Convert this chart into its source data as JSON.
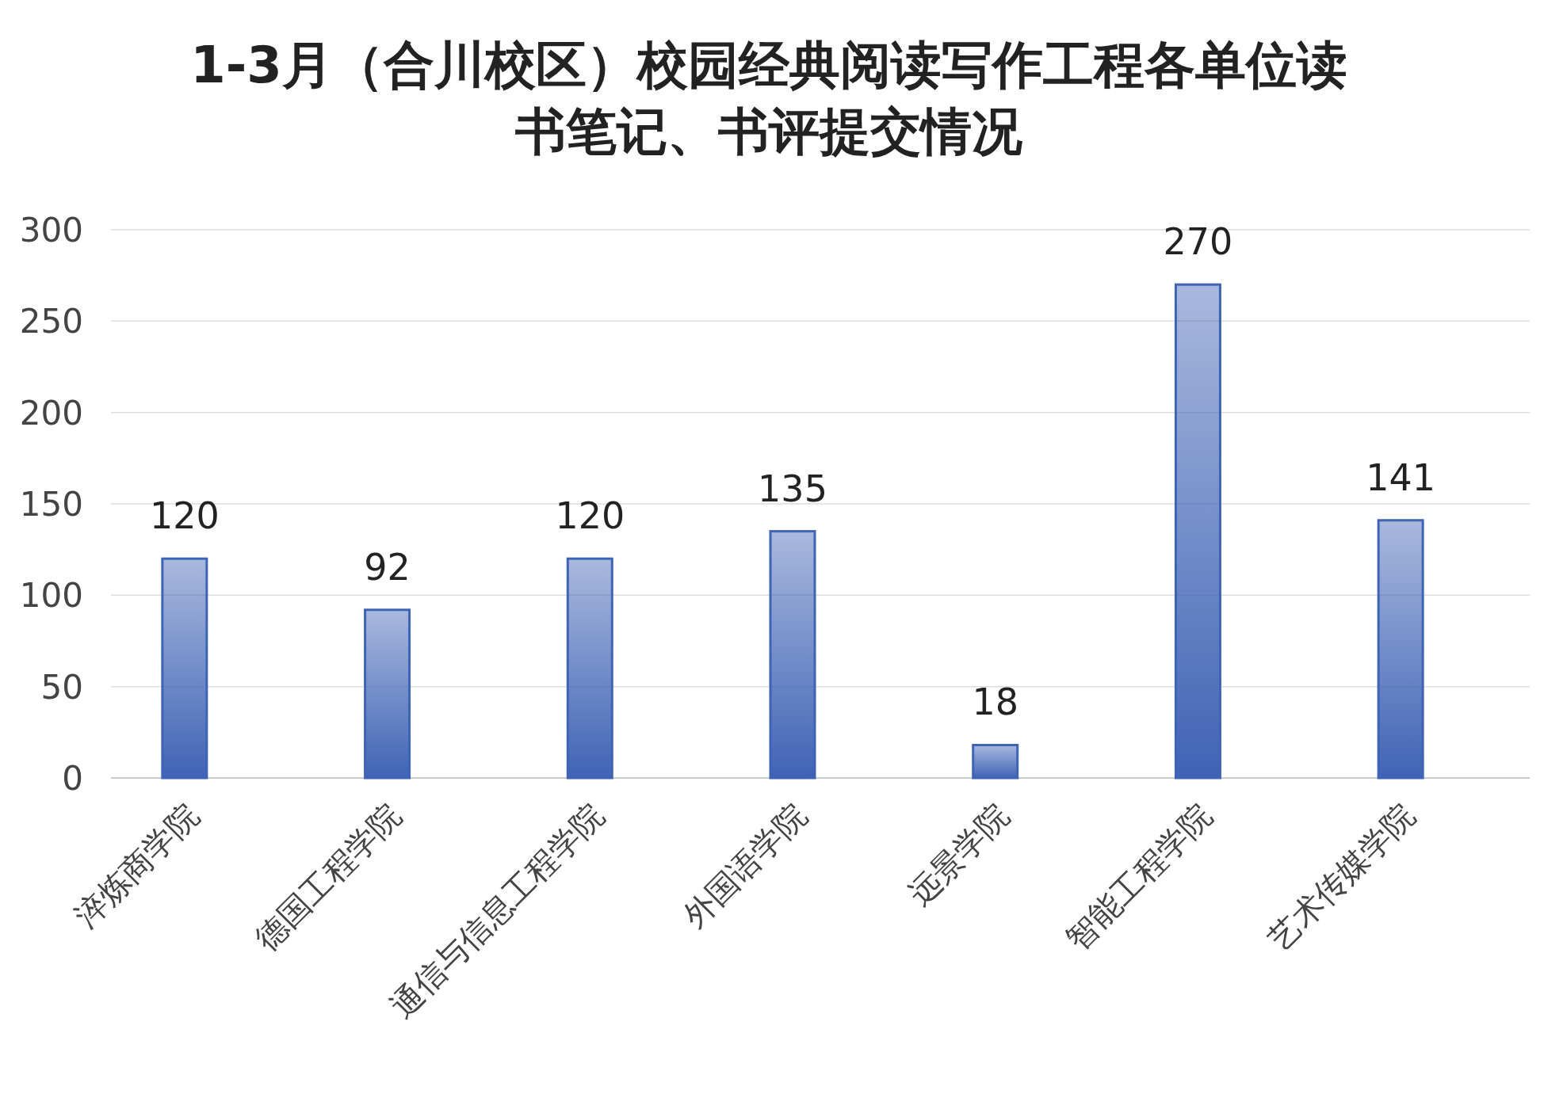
{
  "chart_data": {
    "type": "bar",
    "title": "1-3月（合川校区）校园经典阅读写作工程各单位读书笔记、书评提交情况",
    "categories": [
      "淬炼商学院",
      "德国工程学院",
      "通信与信息工程学院",
      "外国语学院",
      "远景学院",
      "智能工程学院",
      "艺术传媒学院"
    ],
    "values": [
      120,
      92,
      120,
      135,
      18,
      270,
      141
    ],
    "color": "#3f63b5",
    "ylim": [
      0,
      300
    ],
    "yticks": [
      0,
      50,
      100,
      150,
      200,
      250,
      300
    ],
    "grid": "y",
    "data_labels": true
  }
}
